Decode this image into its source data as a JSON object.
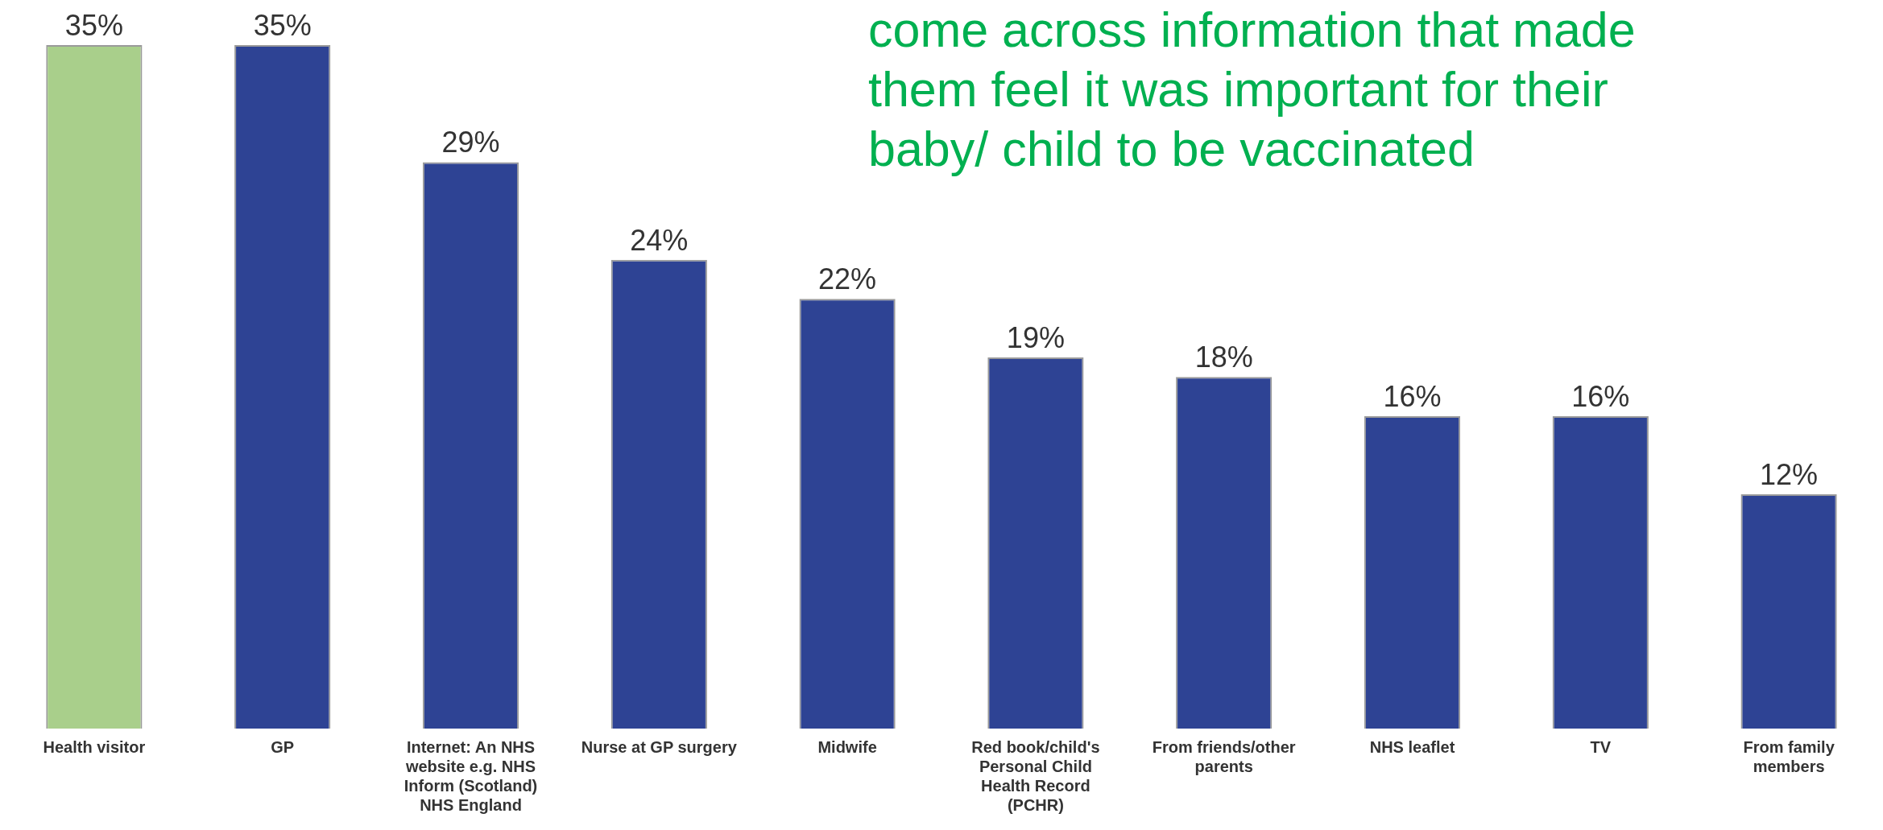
{
  "chart_data": {
    "type": "bar",
    "title": "come across information that made them feel it was important for their baby/ child to be vaccinated",
    "categories": [
      "Health visitor",
      "GP",
      "Internet: An NHS website e.g. NHS Inform (Scotland) NHS England",
      "Nurse at GP surgery",
      "Midwife",
      "Red book/child's Personal Child Health Record (PCHR)",
      "From friends/other parents",
      "NHS leaflet",
      "TV",
      "From family members"
    ],
    "values": [
      35,
      35,
      29,
      24,
      22,
      19,
      18,
      16,
      16,
      12
    ],
    "value_labels": [
      "35%",
      "35%",
      "29%",
      "24%",
      "22%",
      "19%",
      "18%",
      "16%",
      "16%",
      "12%"
    ],
    "colors": [
      "#a9cf8b",
      "#2e4394",
      "#2e4394",
      "#2e4394",
      "#2e4394",
      "#2e4394",
      "#2e4394",
      "#2e4394",
      "#2e4394",
      "#2e4394"
    ],
    "grid": false,
    "legend": false
  }
}
